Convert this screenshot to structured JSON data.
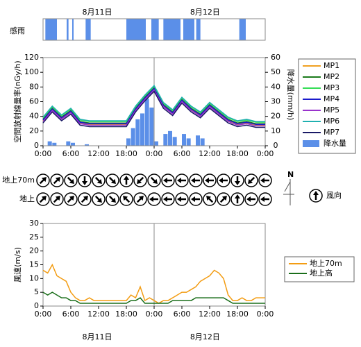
{
  "chart_data": [
    {
      "type": "timeline",
      "label": "感雨",
      "color": "#5b8fe8",
      "xlim": [
        0,
        48
      ],
      "date_ticks": [
        {
          "value": 11.7,
          "label": "8月11日"
        },
        {
          "value": 35,
          "label": "8月12日"
        }
      ],
      "intervals": [
        [
          0.5,
          3
        ],
        [
          5.1,
          5.5
        ],
        [
          6.3,
          6.6
        ],
        [
          9.2,
          10.3
        ],
        [
          18,
          22.2
        ],
        [
          23.4,
          25
        ],
        [
          26,
          29.7
        ],
        [
          30.3,
          32.7
        ],
        [
          33.1,
          34
        ],
        [
          42.4,
          43.8
        ]
      ]
    },
    {
      "type": "line",
      "ylabel": "空間放射線量率(nGy/h)",
      "y2label": "降水量(mm/h)",
      "xlim": [
        0,
        48
      ],
      "ylim": [
        0,
        120
      ],
      "y2lim": [
        0,
        60
      ],
      "xticks": [
        {
          "value": 0,
          "label": "0:00"
        },
        {
          "value": 6,
          "label": "6:00"
        },
        {
          "value": 12,
          "label": "12:00"
        },
        {
          "value": 18,
          "label": "18:00"
        },
        {
          "value": 24,
          "label": "0:00"
        },
        {
          "value": 30,
          "label": "6:00"
        },
        {
          "value": 36,
          "label": "12:00"
        },
        {
          "value": 42,
          "label": "18:00"
        },
        {
          "value": 48,
          "label": "0:00"
        }
      ],
      "yticks": [
        0,
        20,
        40,
        60,
        80,
        100,
        120
      ],
      "y2ticks": [
        0,
        10,
        20,
        30,
        40,
        50,
        60
      ],
      "x": [
        0,
        2,
        4,
        6,
        8,
        10,
        12,
        14,
        16,
        18,
        20,
        22,
        24,
        26,
        28,
        30,
        32,
        34,
        36,
        38,
        40,
        42,
        44,
        46,
        48
      ],
      "series": [
        {
          "name": "MP1",
          "color": "#f0a020",
          "values": [
            34,
            49,
            37,
            46,
            31,
            29,
            29,
            29,
            29,
            29,
            49,
            64,
            77,
            54,
            44,
            61,
            49,
            41,
            54,
            44,
            34,
            29,
            31,
            28,
            28
          ]
        },
        {
          "name": "MP2",
          "color": "#1a7a1a",
          "values": [
            36,
            51,
            39,
            48,
            33,
            31,
            31,
            31,
            31,
            31,
            51,
            66,
            79,
            56,
            46,
            63,
            51,
            43,
            56,
            46,
            36,
            31,
            33,
            30,
            30
          ]
        },
        {
          "name": "MP3",
          "color": "#33dd55",
          "values": [
            38,
            53,
            41,
            50,
            35,
            33,
            33,
            33,
            33,
            33,
            53,
            68,
            81,
            58,
            48,
            65,
            53,
            45,
            58,
            48,
            38,
            33,
            35,
            32,
            32
          ]
        },
        {
          "name": "MP4",
          "color": "#1a1acc",
          "values": [
            35,
            50,
            38,
            47,
            32,
            30,
            30,
            30,
            30,
            30,
            50,
            65,
            78,
            55,
            45,
            62,
            50,
            42,
            55,
            45,
            35,
            30,
            32,
            29,
            29
          ]
        },
        {
          "name": "MP5",
          "color": "#9933cc",
          "values": [
            33,
            48,
            36,
            45,
            30,
            28,
            28,
            28,
            28,
            28,
            48,
            63,
            76,
            53,
            43,
            60,
            48,
            40,
            53,
            43,
            33,
            28,
            30,
            27,
            27
          ]
        },
        {
          "name": "MP6",
          "color": "#20b0b0",
          "values": [
            39,
            54,
            42,
            51,
            36,
            34,
            34,
            34,
            34,
            34,
            54,
            69,
            82,
            59,
            49,
            66,
            54,
            46,
            59,
            49,
            39,
            34,
            36,
            33,
            33
          ]
        },
        {
          "name": "MP7",
          "color": "#1a1a66",
          "values": [
            31,
            46,
            34,
            43,
            28,
            26,
            26,
            26,
            26,
            26,
            46,
            61,
            74,
            51,
            41,
            58,
            46,
            38,
            51,
            41,
            31,
            26,
            28,
            25,
            25
          ]
        },
        {
          "name": "降水量",
          "color": "#5b8fe8",
          "axis": "y2",
          "kind": "bar",
          "x": [
            0,
            1,
            2,
            3,
            4,
            5,
            6,
            7,
            8,
            9,
            10,
            11,
            12,
            13,
            14,
            15,
            16,
            17,
            18,
            19,
            20,
            21,
            22,
            23,
            24,
            25,
            26,
            27,
            28,
            29,
            30,
            31,
            32,
            33,
            34,
            35,
            36,
            37,
            38,
            39,
            40,
            41,
            42,
            43,
            44,
            45,
            46,
            47
          ],
          "values": [
            0,
            3,
            2,
            0,
            0,
            3,
            2,
            0,
            0,
            1,
            0,
            0,
            0,
            0,
            0,
            0,
            0,
            0,
            5,
            12,
            18,
            22,
            32,
            26,
            3,
            0,
            8,
            10,
            6,
            0,
            8,
            5,
            0,
            7,
            5,
            0,
            0,
            0,
            0,
            0,
            0,
            0,
            0,
            0,
            0,
            0,
            0,
            0
          ]
        }
      ]
    },
    {
      "type": "wind_direction",
      "xlim": [
        0,
        48
      ],
      "north_label": "N",
      "legend_label": "風向",
      "x": [
        0,
        3,
        6,
        9,
        12,
        15,
        18,
        21,
        24,
        27,
        30,
        33,
        36,
        39,
        42,
        45,
        48
      ],
      "rows": [
        {
          "name": "地上70m",
          "values": [
            45,
            45,
            135,
            180,
            135,
            135,
            0,
            225,
            135,
            270,
            270,
            270,
            270,
            270,
            180,
            225,
            270
          ]
        },
        {
          "name": "地上",
          "values": [
            45,
            45,
            45,
            45,
            135,
            135,
            315,
            45,
            270,
            270,
            270,
            270,
            315,
            45,
            0,
            270,
            270
          ]
        }
      ]
    },
    {
      "type": "line",
      "ylabel": "風速(m/s)",
      "xlim": [
        0,
        48
      ],
      "ylim": [
        0,
        30
      ],
      "xticks": [
        {
          "value": 0,
          "label": "0:00"
        },
        {
          "value": 6,
          "label": "6:00"
        },
        {
          "value": 12,
          "label": "12:00"
        },
        {
          "value": 18,
          "label": "18:00"
        },
        {
          "value": 24,
          "label": "0:00"
        },
        {
          "value": 30,
          "label": "6:00"
        },
        {
          "value": 36,
          "label": "12:00"
        },
        {
          "value": 42,
          "label": "18:00"
        },
        {
          "value": 48,
          "label": "0:00"
        }
      ],
      "yticks": [
        0,
        5,
        10,
        15,
        20,
        25,
        30
      ],
      "date_ticks": [
        {
          "value": 11.7,
          "label": "8月11日"
        },
        {
          "value": 35,
          "label": "8月12日"
        }
      ],
      "x": [
        0,
        1,
        2,
        3,
        4,
        5,
        6,
        7,
        8,
        9,
        10,
        11,
        12,
        13,
        14,
        15,
        16,
        17,
        18,
        19,
        20,
        21,
        22,
        23,
        24,
        25,
        26,
        27,
        28,
        29,
        30,
        31,
        32,
        33,
        34,
        35,
        36,
        37,
        38,
        39,
        40,
        41,
        42,
        43,
        44,
        45,
        46,
        47,
        48
      ],
      "series": [
        {
          "name": "地上70m",
          "color": "#f39c12",
          "values": [
            13,
            12,
            15,
            11,
            10,
            9,
            5,
            3,
            2,
            2,
            3,
            2,
            2,
            2,
            2,
            2,
            2,
            2,
            2,
            4,
            3,
            7,
            2,
            3,
            2,
            1,
            2,
            2,
            3,
            4,
            5,
            5,
            6,
            7,
            9,
            10,
            11,
            13,
            12,
            10,
            4,
            2,
            2,
            3,
            2,
            2,
            3,
            3,
            3
          ]
        },
        {
          "name": "地上高",
          "color": "#1a6e1a",
          "values": [
            5,
            4,
            5,
            4,
            3,
            3,
            2,
            2,
            1,
            1,
            1,
            1,
            1,
            1,
            1,
            1,
            1,
            1,
            1,
            2,
            2,
            3,
            1,
            1,
            1,
            1,
            1,
            1,
            2,
            2,
            2,
            2,
            2,
            3,
            3,
            3,
            3,
            3,
            3,
            3,
            2,
            1,
            1,
            1,
            1,
            1,
            1,
            1,
            1
          ]
        }
      ]
    }
  ]
}
